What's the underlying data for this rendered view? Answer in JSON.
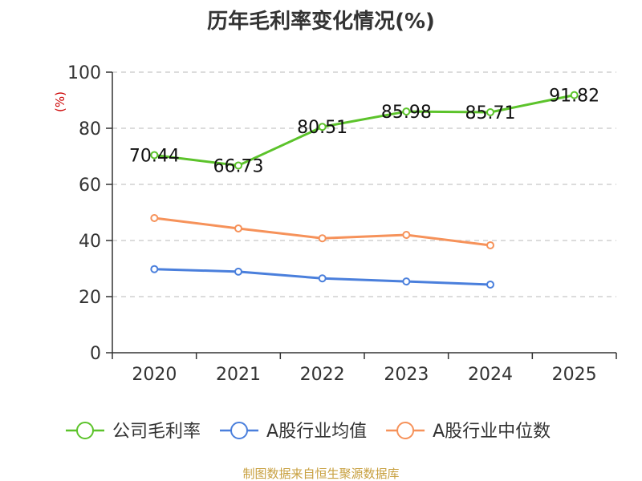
{
  "chart_data": {
    "type": "line",
    "title": "历年毛利率变化情况(%)",
    "ylabel": "(%)",
    "xlabel": "",
    "ylim": [
      0,
      100
    ],
    "yticks": [
      0,
      20,
      40,
      60,
      80,
      100
    ],
    "categories": [
      "2020",
      "2021",
      "2022",
      "2023",
      "2024",
      "2025"
    ],
    "grid": true,
    "legend_position": "bottom",
    "series": [
      {
        "name": "公司毛利率",
        "color": "#5cc32b",
        "values": [
          70.44,
          66.73,
          80.51,
          85.98,
          85.71,
          91.82
        ],
        "labels": [
          "70.44",
          "66.73",
          "80.51",
          "85.98",
          "85.71",
          "91.82"
        ],
        "show_labels": true
      },
      {
        "name": "A股行业均值",
        "color": "#4a7fdc",
        "values": [
          29.8,
          28.9,
          26.5,
          25.4,
          24.3,
          null
        ],
        "show_labels": false
      },
      {
        "name": "A股行业中位数",
        "color": "#f6925a",
        "values": [
          48.0,
          44.3,
          40.8,
          42.0,
          38.3,
          null
        ],
        "show_labels": false
      }
    ],
    "source": "制图数据来自恒生聚源数据库"
  }
}
